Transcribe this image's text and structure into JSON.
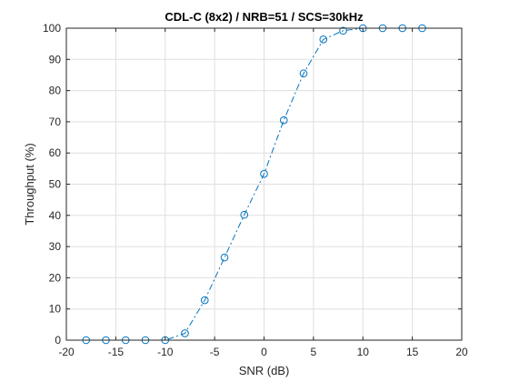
{
  "chart_data": {
    "type": "line",
    "title": "CDL-C (8x2) / NRB=51 / SCS=30kHz",
    "xlabel": "SNR (dB)",
    "ylabel": "Throughput (%)",
    "xlim": [
      -20,
      20
    ],
    "ylim": [
      0,
      100
    ],
    "xticks": [
      -20,
      -15,
      -10,
      -5,
      0,
      5,
      10,
      15,
      20
    ],
    "yticks": [
      0,
      10,
      20,
      30,
      40,
      50,
      60,
      70,
      80,
      90,
      100
    ],
    "grid": true,
    "x": [
      -18,
      -16,
      -14,
      -12,
      -10,
      -8,
      -6,
      -4,
      -2,
      0,
      2,
      4,
      6,
      8,
      10,
      12,
      14,
      16
    ],
    "series": [
      {
        "values": [
          0,
          0,
          0,
          0,
          0,
          2.2,
          12.8,
          26.5,
          40.2,
          53.3,
          70.5,
          85.5,
          96.4,
          99.2,
          100,
          100,
          100,
          100
        ],
        "color": "#0072BD",
        "line_style": "dash-dot",
        "marker": "circle"
      }
    ]
  }
}
